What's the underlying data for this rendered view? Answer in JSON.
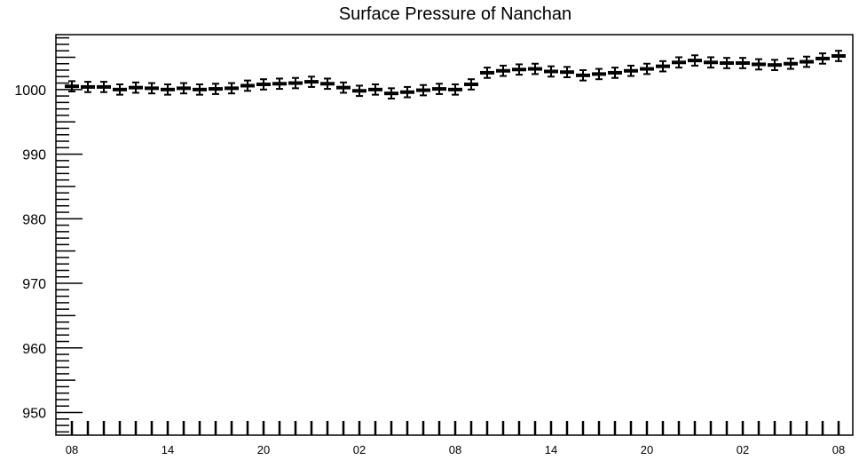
{
  "chart_data": {
    "type": "line",
    "title": "Surface Pressure of Nanchan",
    "xlabel": "",
    "ylabel": "",
    "y_ticks": [
      950,
      960,
      970,
      980,
      990,
      1000
    ],
    "ylim": [
      946.5,
      1008.5
    ],
    "x_tick_labels": [
      "08",
      "14",
      "20",
      "02",
      "08",
      "14",
      "20",
      "02",
      "08"
    ],
    "series": [
      {
        "values": [
          1000.5,
          1000.4,
          1000.4,
          1000.0,
          1000.3,
          1000.2,
          1000.0,
          1000.2,
          1000.0,
          1000.1,
          1000.2,
          1000.6,
          1000.8,
          1000.9,
          1001.0,
          1001.2,
          1000.9,
          1000.3,
          999.8,
          1000.0,
          999.4,
          999.6,
          999.9,
          1000.1,
          1000.0,
          1000.8,
          1002.6,
          1002.9,
          1003.1,
          1003.2,
          1002.8,
          1002.7,
          1002.2,
          1002.4,
          1002.6,
          1002.9,
          1003.2,
          1003.6,
          1004.2,
          1004.5,
          1004.2,
          1004.1,
          1004.1,
          1003.9,
          1003.8,
          1004.0,
          1004.3,
          1004.8,
          1005.2
        ],
        "errors": [
          0.8,
          0.8,
          0.8,
          0.8,
          0.8,
          0.8,
          0.8,
          0.8,
          0.8,
          0.8,
          0.8,
          0.8,
          0.8,
          0.8,
          0.8,
          0.8,
          0.8,
          0.8,
          0.8,
          0.8,
          0.8,
          0.8,
          0.8,
          0.8,
          0.8,
          0.8,
          0.8,
          0.8,
          0.8,
          0.8,
          0.8,
          0.8,
          0.8,
          0.8,
          0.8,
          0.8,
          0.8,
          0.8,
          0.8,
          0.8,
          0.8,
          0.8,
          0.8,
          0.8,
          0.8,
          0.8,
          0.8,
          0.8,
          0.8
        ]
      }
    ],
    "grid": false,
    "legend": "none"
  }
}
